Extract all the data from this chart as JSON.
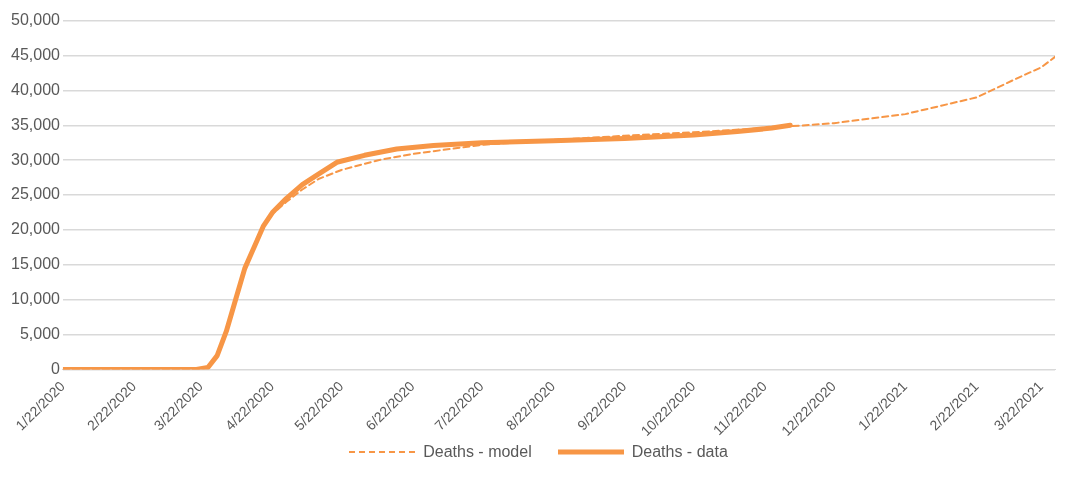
{
  "chart_data": {
    "type": "line",
    "xlim": [
      "2020-01-22",
      "2021-03-28"
    ],
    "xticks": [
      {
        "value": "2020-01-22",
        "label": "1/22/2020"
      },
      {
        "value": "2020-02-22",
        "label": "2/22/2020"
      },
      {
        "value": "2020-03-22",
        "label": "3/22/2020"
      },
      {
        "value": "2020-04-22",
        "label": "4/22/2020"
      },
      {
        "value": "2020-05-22",
        "label": "5/22/2020"
      },
      {
        "value": "2020-06-22",
        "label": "6/22/2020"
      },
      {
        "value": "2020-07-22",
        "label": "7/22/2020"
      },
      {
        "value": "2020-08-22",
        "label": "8/22/2020"
      },
      {
        "value": "2020-09-22",
        "label": "9/22/2020"
      },
      {
        "value": "2020-10-22",
        "label": "10/22/2020"
      },
      {
        "value": "2020-11-22",
        "label": "11/22/2020"
      },
      {
        "value": "2020-12-22",
        "label": "12/22/2020"
      },
      {
        "value": "2021-01-22",
        "label": "1/22/2021"
      },
      {
        "value": "2021-02-22",
        "label": "2/22/2021"
      },
      {
        "value": "2021-03-22",
        "label": "3/22/2021"
      }
    ],
    "ylim": [
      0,
      50000
    ],
    "yticks": [
      {
        "value": 0,
        "label": "0"
      },
      {
        "value": 5000,
        "label": "5,000"
      },
      {
        "value": 10000,
        "label": "10,000"
      },
      {
        "value": 15000,
        "label": "15,000"
      },
      {
        "value": 20000,
        "label": "20,000"
      },
      {
        "value": 25000,
        "label": "25,000"
      },
      {
        "value": 30000,
        "label": "30,000"
      },
      {
        "value": 35000,
        "label": "35,000"
      },
      {
        "value": 40000,
        "label": "40,000"
      },
      {
        "value": 45000,
        "label": "45,000"
      },
      {
        "value": 50000,
        "label": "50,000"
      }
    ],
    "grid": "y",
    "legend": "bottom",
    "marker": "none",
    "series": [
      {
        "name": "Deaths - model",
        "color": "#f79646",
        "line_style": "dashed",
        "x": [
          "2020-01-22",
          "2020-03-20",
          "2020-03-25",
          "2020-03-29",
          "2020-04-02",
          "2020-04-06",
          "2020-04-10",
          "2020-04-14",
          "2020-04-18",
          "2020-04-22",
          "2020-04-28",
          "2020-05-05",
          "2020-05-12",
          "2020-05-22",
          "2020-06-07",
          "2020-06-22",
          "2020-07-22",
          "2020-08-22",
          "2020-09-22",
          "2020-10-22",
          "2020-11-22",
          "2020-12-22",
          "2021-01-22",
          "2021-02-22",
          "2021-03-10",
          "2021-03-22",
          "2021-03-28"
        ],
        "values": [
          0,
          0,
          300,
          2000,
          5500,
          10000,
          14500,
          17500,
          20500,
          22300,
          24000,
          25800,
          27300,
          28600,
          30000,
          30900,
          32200,
          32900,
          33500,
          34000,
          34600,
          35300,
          36600,
          39000,
          41500,
          43300,
          44800
        ]
      },
      {
        "name": "Deaths - data",
        "color": "#f79646",
        "line_style": "solid",
        "x": [
          "2020-01-22",
          "2020-03-20",
          "2020-03-25",
          "2020-03-29",
          "2020-04-02",
          "2020-04-06",
          "2020-04-10",
          "2020-04-14",
          "2020-04-18",
          "2020-04-22",
          "2020-04-28",
          "2020-05-05",
          "2020-05-12",
          "2020-05-20",
          "2020-06-01",
          "2020-06-15",
          "2020-07-01",
          "2020-07-22",
          "2020-08-22",
          "2020-09-22",
          "2020-10-22",
          "2020-11-10",
          "2020-11-25",
          "2020-12-03"
        ],
        "values": [
          0,
          0,
          300,
          2000,
          5500,
          10000,
          14500,
          17500,
          20500,
          22500,
          24500,
          26500,
          28000,
          29700,
          30700,
          31600,
          32100,
          32500,
          32800,
          33100,
          33600,
          34100,
          34600,
          35000
        ]
      }
    ]
  }
}
